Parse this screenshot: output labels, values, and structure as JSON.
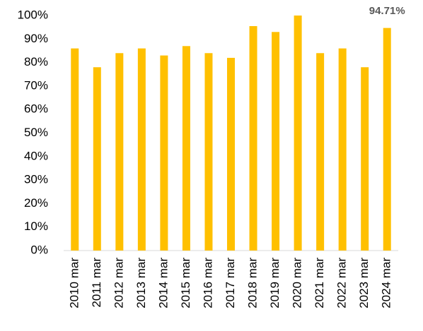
{
  "chart_data": {
    "type": "bar",
    "categories": [
      "2010 mar",
      "2011 mar",
      "2012 mar",
      "2013 mar",
      "2014 mar",
      "2015 mar",
      "2016 mar",
      "2017 mar",
      "2018 mar",
      "2019 mar",
      "2020 mar",
      "2021 mar",
      "2022 mar",
      "2023 mar",
      "2024 mar"
    ],
    "values": [
      86,
      78,
      84,
      86,
      83,
      87,
      84,
      82,
      95.5,
      93,
      100,
      84,
      86,
      78,
      94.71
    ],
    "value_labels": [
      null,
      null,
      null,
      null,
      null,
      null,
      null,
      null,
      null,
      null,
      null,
      null,
      null,
      null,
      "94.71%"
    ],
    "color": "#FFC000",
    "ylim": [
      0,
      100
    ],
    "yticks": [
      {
        "value": 0,
        "label": "0%"
      },
      {
        "value": 10,
        "label": "10%"
      },
      {
        "value": 20,
        "label": "20%"
      },
      {
        "value": 30,
        "label": "30%"
      },
      {
        "value": 40,
        "label": "40%"
      },
      {
        "value": 50,
        "label": "50%"
      },
      {
        "value": 60,
        "label": "60%"
      },
      {
        "value": 70,
        "label": "70%"
      },
      {
        "value": 80,
        "label": "80%"
      },
      {
        "value": 90,
        "label": "90%"
      },
      {
        "value": 100,
        "label": "100%"
      }
    ],
    "grid": false
  }
}
